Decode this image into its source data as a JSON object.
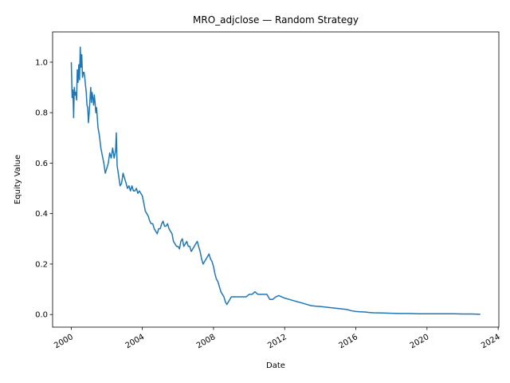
{
  "chart_data": {
    "type": "line",
    "title": "MRO_adjclose — Random Strategy",
    "xlabel": "Date",
    "ylabel": "Equity Value",
    "x_ticks": [
      "2000",
      "2004",
      "2008",
      "2012",
      "2016",
      "2020",
      "2024"
    ],
    "y_ticks": [
      "0.0",
      "0.2",
      "0.4",
      "0.6",
      "0.8",
      "1.0"
    ],
    "xlim": [
      "1998-12-15",
      "2024-01-15"
    ],
    "ylim": [
      -0.05,
      1.12
    ],
    "grid": false,
    "series_color": "#1f77b4",
    "series": [
      {
        "x": [
          "2000-01-03",
          "2000-01-20",
          "2000-02-05",
          "2000-02-20",
          "2000-03-05",
          "2000-03-20",
          "2000-04-05",
          "2000-04-20",
          "2000-05-05",
          "2000-05-20",
          "2000-06-05",
          "2000-06-20",
          "2000-07-05",
          "2000-07-20",
          "2000-08-05",
          "2000-08-20",
          "2000-09-05",
          "2000-09-20",
          "2000-10-05",
          "2000-10-20",
          "2000-11-05",
          "2000-11-20",
          "2000-12-05",
          "2000-12-20",
          "2001-01-05",
          "2001-01-20",
          "2001-02-05",
          "2001-02-20",
          "2001-03-05",
          "2001-03-20",
          "2001-04-05",
          "2001-04-20",
          "2001-05-05",
          "2001-05-20",
          "2001-06-05",
          "2001-06-20",
          "2001-07-05",
          "2001-08-01",
          "2001-09-01",
          "2001-10-01",
          "2001-11-01",
          "2001-12-01",
          "2002-01-01",
          "2002-02-01",
          "2002-03-01",
          "2002-04-01",
          "2002-05-01",
          "2002-06-01",
          "2002-07-01",
          "2002-07-15",
          "2002-08-01",
          "2002-09-01",
          "2002-10-01",
          "2002-11-01",
          "2002-12-01",
          "2003-01-01",
          "2003-02-01",
          "2003-03-01",
          "2003-04-01",
          "2003-05-01",
          "2003-06-01",
          "2003-07-01",
          "2003-08-01",
          "2003-09-01",
          "2003-10-01",
          "2003-11-01",
          "2003-12-01",
          "2004-01-01",
          "2004-02-01",
          "2004-03-01",
          "2004-04-01",
          "2004-05-01",
          "2004-06-01",
          "2004-07-01",
          "2004-08-01",
          "2004-09-01",
          "2004-10-01",
          "2004-11-01",
          "2004-12-01",
          "2005-01-01",
          "2005-02-01",
          "2005-03-01",
          "2005-04-01",
          "2005-05-01",
          "2005-06-01",
          "2005-07-01",
          "2005-08-01",
          "2005-09-01",
          "2005-10-01",
          "2005-11-01",
          "2005-12-01",
          "2006-01-01",
          "2006-02-01",
          "2006-03-01",
          "2006-04-01",
          "2006-05-01",
          "2006-06-01",
          "2006-07-01",
          "2006-08-01",
          "2006-09-01",
          "2006-10-01",
          "2006-11-01",
          "2006-12-01",
          "2007-01-01",
          "2007-02-01",
          "2007-03-01",
          "2007-04-01",
          "2007-05-01",
          "2007-06-01",
          "2007-07-01",
          "2007-08-01",
          "2007-09-01",
          "2007-10-01",
          "2007-11-01",
          "2007-12-01",
          "2008-01-01",
          "2008-02-01",
          "2008-03-01",
          "2008-04-01",
          "2008-05-01",
          "2008-06-01",
          "2008-07-01",
          "2008-08-01",
          "2008-09-01",
          "2008-10-01",
          "2008-11-01",
          "2008-12-01",
          "2009-01-01",
          "2009-03-01",
          "2009-05-01",
          "2009-07-01",
          "2009-09-01",
          "2009-11-01",
          "2010-01-01",
          "2010-03-01",
          "2010-05-01",
          "2010-07-01",
          "2010-09-01",
          "2010-11-01",
          "2011-01-01",
          "2011-03-01",
          "2011-05-01",
          "2011-07-01",
          "2011-09-01",
          "2011-11-01",
          "2012-01-01",
          "2012-04-01",
          "2012-07-01",
          "2012-10-01",
          "2013-01-01",
          "2013-04-01",
          "2013-07-01",
          "2013-10-01",
          "2014-01-01",
          "2014-04-01",
          "2014-07-01",
          "2014-10-01",
          "2015-01-01",
          "2015-04-01",
          "2015-07-01",
          "2015-10-01",
          "2016-01-01",
          "2016-04-01",
          "2016-07-01",
          "2016-10-01",
          "2017-01-01",
          "2017-07-01",
          "2018-01-01",
          "2018-07-01",
          "2019-01-01",
          "2019-07-01",
          "2020-01-01",
          "2020-07-01",
          "2021-01-01",
          "2021-07-01",
          "2022-01-01",
          "2022-07-01",
          "2022-12-30"
        ],
        "y": [
          1.0,
          0.86,
          0.89,
          0.78,
          0.9,
          0.87,
          0.88,
          0.85,
          0.97,
          0.92,
          0.99,
          0.93,
          1.06,
          0.98,
          1.03,
          0.94,
          0.96,
          0.96,
          0.94,
          0.91,
          0.88,
          0.83,
          0.82,
          0.76,
          0.8,
          0.85,
          0.9,
          0.84,
          0.88,
          0.86,
          0.83,
          0.87,
          0.84,
          0.8,
          0.82,
          0.78,
          0.74,
          0.71,
          0.66,
          0.63,
          0.6,
          0.56,
          0.58,
          0.6,
          0.64,
          0.62,
          0.66,
          0.62,
          0.65,
          0.72,
          0.59,
          0.55,
          0.51,
          0.52,
          0.56,
          0.54,
          0.52,
          0.5,
          0.51,
          0.49,
          0.51,
          0.49,
          0.49,
          0.5,
          0.48,
          0.49,
          0.48,
          0.47,
          0.44,
          0.41,
          0.4,
          0.39,
          0.37,
          0.36,
          0.36,
          0.34,
          0.33,
          0.32,
          0.34,
          0.34,
          0.36,
          0.37,
          0.35,
          0.35,
          0.36,
          0.34,
          0.33,
          0.32,
          0.29,
          0.28,
          0.27,
          0.27,
          0.26,
          0.29,
          0.3,
          0.27,
          0.28,
          0.29,
          0.27,
          0.27,
          0.25,
          0.26,
          0.27,
          0.28,
          0.29,
          0.27,
          0.25,
          0.22,
          0.2,
          0.21,
          0.22,
          0.23,
          0.24,
          0.22,
          0.21,
          0.19,
          0.16,
          0.14,
          0.13,
          0.11,
          0.09,
          0.08,
          0.07,
          0.05,
          0.04,
          0.05,
          0.06,
          0.07,
          0.07,
          0.07,
          0.07,
          0.07,
          0.07,
          0.08,
          0.08,
          0.09,
          0.08,
          0.08,
          0.08,
          0.08,
          0.06,
          0.06,
          0.07,
          0.075,
          0.07,
          0.065,
          0.06,
          0.055,
          0.05,
          0.045,
          0.04,
          0.035,
          0.033,
          0.032,
          0.03,
          0.028,
          0.026,
          0.024,
          0.022,
          0.02,
          0.015,
          0.012,
          0.011,
          0.01,
          0.008,
          0.007,
          0.006,
          0.005,
          0.004,
          0.004,
          0.003,
          0.003,
          0.003,
          0.003,
          0.003,
          0.002,
          0.002,
          0.001
        ]
      }
    ]
  }
}
